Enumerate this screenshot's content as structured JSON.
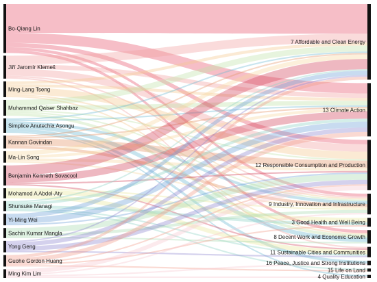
{
  "chart_data": {
    "type": "sankey",
    "sources": [
      {
        "name": "Bo-Qiang Lin",
        "color": "#e8536b"
      },
      {
        "name": "Jiří Jaromír Klemeš",
        "color": "#f2a0a0"
      },
      {
        "name": "Ming-Lang Tseng",
        "color": "#f4c78f"
      },
      {
        "name": "Muhammad Qaiser Shahbaz",
        "color": "#bfe3a8"
      },
      {
        "name": "Simplice Anutechia Asongu",
        "color": "#6cb7d1"
      },
      {
        "name": "Kannan Govindan",
        "color": "#e6956a"
      },
      {
        "name": "Ma-Lin Song",
        "color": "#f7d8a0"
      },
      {
        "name": "Benjamin Kenneth Sovacool",
        "color": "#d2455c"
      },
      {
        "name": "Mohamed A Abdel-Aty",
        "color": "#e9e79a"
      },
      {
        "name": "Shunsuke Managi",
        "color": "#8fd3c6"
      },
      {
        "name": "Yi-Ming Wei",
        "color": "#6fa0d8"
      },
      {
        "name": "Sachin Kumar Mangla",
        "color": "#a8dbb0"
      },
      {
        "name": "Yong Geng",
        "color": "#8f86cf"
      },
      {
        "name": "Guohe Gordon Huang",
        "color": "#f39a8a"
      },
      {
        "name": "Ming Kim Lim",
        "color": "#f7c7cf"
      }
    ],
    "targets": [
      {
        "name": "7 Affordable and Clean Energy"
      },
      {
        "name": "13 Climate Action"
      },
      {
        "name": "12 Responsible Consumption and Production"
      },
      {
        "name": "9 Industry, Innovation and Infrastructure"
      },
      {
        "name": "3 Good Health and Well Being"
      },
      {
        "name": "8 Decent Work and Economic Growth"
      },
      {
        "name": "11 Sustainable Cities and Communities"
      },
      {
        "name": "16 Peace, Justice and Strong Institutions"
      },
      {
        "name": "15 Life on Land"
      },
      {
        "name": "4 Quality Education"
      }
    ],
    "flows": [
      {
        "source": "Bo-Qiang Lin",
        "target": "7 Affordable and Clean Energy",
        "value": 20
      },
      {
        "source": "Bo-Qiang Lin",
        "target": "13 Climate Action",
        "value": 7
      },
      {
        "source": "Bo-Qiang Lin",
        "target": "12 Responsible Consumption and Production",
        "value": 3
      },
      {
        "source": "Bo-Qiang Lin",
        "target": "9 Industry, Innovation and Infrastructure",
        "value": 2
      },
      {
        "source": "Bo-Qiang Lin",
        "target": "8 Decent Work and Economic Growth",
        "value": 2
      },
      {
        "source": "Jiří Jaromír Klemeš",
        "target": "7 Affordable and Clean Energy",
        "value": 6
      },
      {
        "source": "Jiří Jaromír Klemeš",
        "target": "13 Climate Action",
        "value": 3
      },
      {
        "source": "Jiří Jaromír Klemeš",
        "target": "12 Responsible Consumption and Production",
        "value": 5
      },
      {
        "source": "Jiří Jaromír Klemeš",
        "target": "9 Industry, Innovation and Infrastructure",
        "value": 1
      },
      {
        "source": "Jiří Jaromír Klemeš",
        "target": "11 Sustainable Cities and Communities",
        "value": 1
      },
      {
        "source": "Ming-Lang Tseng",
        "target": "12 Responsible Consumption and Production",
        "value": 5
      },
      {
        "source": "Ming-Lang Tseng",
        "target": "7 Affordable and Clean Energy",
        "value": 2
      },
      {
        "source": "Ming-Lang Tseng",
        "target": "13 Climate Action",
        "value": 2
      },
      {
        "source": "Ming-Lang Tseng",
        "target": "9 Industry, Innovation and Infrastructure",
        "value": 1
      },
      {
        "source": "Ming-Lang Tseng",
        "target": "8 Decent Work and Economic Growth",
        "value": 1
      },
      {
        "source": "Muhammad Qaiser Shahbaz",
        "target": "7 Affordable and Clean Energy",
        "value": 4
      },
      {
        "source": "Muhammad Qaiser Shahbaz",
        "target": "13 Climate Action",
        "value": 3
      },
      {
        "source": "Muhammad Qaiser Shahbaz",
        "target": "8 Decent Work and Economic Growth",
        "value": 2
      },
      {
        "source": "Muhammad Qaiser Shahbaz",
        "target": "9 Industry, Innovation and Infrastructure",
        "value": 1
      },
      {
        "source": "Muhammad Qaiser Shahbaz",
        "target": "12 Responsible Consumption and Production",
        "value": 1
      },
      {
        "source": "Simplice Anutechia Asongu",
        "target": "8 Decent Work and Economic Growth",
        "value": 3
      },
      {
        "source": "Simplice Anutechia Asongu",
        "target": "16 Peace, Justice and Strong Institutions",
        "value": 2
      },
      {
        "source": "Simplice Anutechia Asongu",
        "target": "4 Quality Education",
        "value": 1
      },
      {
        "source": "Simplice Anutechia Asongu",
        "target": "9 Industry, Innovation and Infrastructure",
        "value": 2
      },
      {
        "source": "Simplice Anutechia Asongu",
        "target": "7 Affordable and Clean Energy",
        "value": 1
      },
      {
        "source": "Simplice Anutechia Asongu",
        "target": "13 Climate Action",
        "value": 1
      },
      {
        "source": "Kannan Govindan",
        "target": "12 Responsible Consumption and Production",
        "value": 5
      },
      {
        "source": "Kannan Govindan",
        "target": "9 Industry, Innovation and Infrastructure",
        "value": 2
      },
      {
        "source": "Kannan Govindan",
        "target": "7 Affordable and Clean Energy",
        "value": 1
      },
      {
        "source": "Kannan Govindan",
        "target": "13 Climate Action",
        "value": 1
      },
      {
        "source": "Ma-Lin Song",
        "target": "7 Affordable and Clean Energy",
        "value": 3
      },
      {
        "source": "Ma-Lin Song",
        "target": "13 Climate Action",
        "value": 2
      },
      {
        "source": "Ma-Lin Song",
        "target": "12 Responsible Consumption and Production",
        "value": 2
      },
      {
        "source": "Ma-Lin Song",
        "target": "9 Industry, Innovation and Infrastructure",
        "value": 1
      },
      {
        "source": "Benjamin Kenneth Sovacool",
        "target": "7 Affordable and Clean Energy",
        "value": 7
      },
      {
        "source": "Benjamin Kenneth Sovacool",
        "target": "13 Climate Action",
        "value": 5
      },
      {
        "source": "Benjamin Kenneth Sovacool",
        "target": "12 Responsible Consumption and Production",
        "value": 1
      },
      {
        "source": "Benjamin Kenneth Sovacool",
        "target": "11 Sustainable Cities and Communities",
        "value": 1
      },
      {
        "source": "Mohamed A Abdel-Aty",
        "target": "11 Sustainable Cities and Communities",
        "value": 3
      },
      {
        "source": "Mohamed A Abdel-Aty",
        "target": "3 Good Health and Well Being",
        "value": 3
      },
      {
        "source": "Mohamed A Abdel-Aty",
        "target": "9 Industry, Innovation and Infrastructure",
        "value": 1
      },
      {
        "source": "Shunsuke Managi",
        "target": "13 Climate Action",
        "value": 2
      },
      {
        "source": "Shunsuke Managi",
        "target": "3 Good Health and Well Being",
        "value": 2
      },
      {
        "source": "Shunsuke Managi",
        "target": "7 Affordable and Clean Energy",
        "value": 1
      },
      {
        "source": "Shunsuke Managi",
        "target": "11 Sustainable Cities and Communities",
        "value": 1
      },
      {
        "source": "Shunsuke Managi",
        "target": "15 Life on Land",
        "value": 1
      },
      {
        "source": "Yi-Ming Wei",
        "target": "13 Climate Action",
        "value": 4
      },
      {
        "source": "Yi-Ming Wei",
        "target": "7 Affordable and Clean Energy",
        "value": 3
      },
      {
        "source": "Yi-Ming Wei",
        "target": "12 Responsible Consumption and Production",
        "value": 1
      },
      {
        "source": "Sachin Kumar Mangla",
        "target": "12 Responsible Consumption and Production",
        "value": 4
      },
      {
        "source": "Sachin Kumar Mangla",
        "target": "9 Industry, Innovation and Infrastructure",
        "value": 2
      },
      {
        "source": "Sachin Kumar Mangla",
        "target": "8 Decent Work and Economic Growth",
        "value": 1
      },
      {
        "source": "Yong Geng",
        "target": "12 Responsible Consumption and Production",
        "value": 3
      },
      {
        "source": "Yong Geng",
        "target": "13 Climate Action",
        "value": 3
      },
      {
        "source": "Yong Geng",
        "target": "7 Affordable and Clean Energy",
        "value": 1
      },
      {
        "source": "Yong Geng",
        "target": "11 Sustainable Cities and Communities",
        "value": 1
      },
      {
        "source": "Guohe Gordon Huang",
        "target": "13 Climate Action",
        "value": 3
      },
      {
        "source": "Guohe Gordon Huang",
        "target": "7 Affordable and Clean Energy",
        "value": 2
      },
      {
        "source": "Guohe Gordon Huang",
        "target": "15 Life on Land",
        "value": 1
      },
      {
        "source": "Guohe Gordon Huang",
        "target": "12 Responsible Consumption and Production",
        "value": 1
      },
      {
        "source": "Guohe Gordon Huang",
        "target": "3 Good Health and Well Being",
        "value": 1
      },
      {
        "source": "Ming Kim Lim",
        "target": "12 Responsible Consumption and Production",
        "value": 3
      },
      {
        "source": "Ming Kim Lim",
        "target": "9 Industry, Innovation and Infrastructure",
        "value": 1
      },
      {
        "source": "Ming Kim Lim",
        "target": "4 Quality Education",
        "value": 1
      },
      {
        "source": "Ming Kim Lim",
        "target": "16 Peace, Justice and Strong Institutions",
        "value": 1
      }
    ],
    "node_bar_color": "#111111",
    "link_opacity": 0.38
  }
}
